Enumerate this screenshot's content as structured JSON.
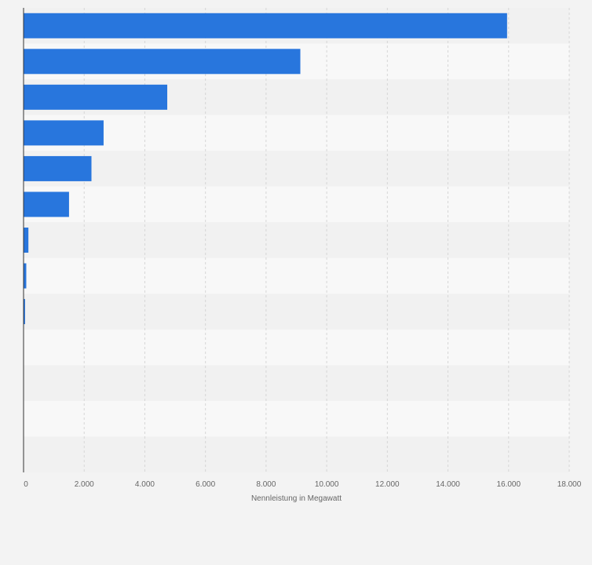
{
  "colors": {
    "bar": "#2876dd",
    "band_light": "#f8f8f8",
    "band_dark": "#f1f1f1",
    "grid": "#d6d6d6",
    "axis": "#333333"
  },
  "chart_data": {
    "type": "bar",
    "orientation": "horizontal",
    "categories": [
      "",
      "",
      "",
      "",
      "",
      "",
      "",
      "",
      "",
      "",
      "",
      "",
      ""
    ],
    "values": [
      15950,
      9130,
      4740,
      2640,
      2240,
      1500,
      160,
      90,
      50,
      0,
      0,
      0,
      0
    ],
    "xlabel": "Nennleistung in Megawatt",
    "ylabel": "",
    "xlim": [
      0,
      18000
    ],
    "xticks": [
      0,
      2000,
      4000,
      6000,
      8000,
      10000,
      12000,
      14000,
      16000,
      18000
    ],
    "xtick_labels": [
      "0",
      "2.000",
      "4.000",
      "6.000",
      "8.000",
      "10.000",
      "12.000",
      "14.000",
      "16.000",
      "18.000"
    ],
    "grid": true,
    "legend": "none"
  }
}
